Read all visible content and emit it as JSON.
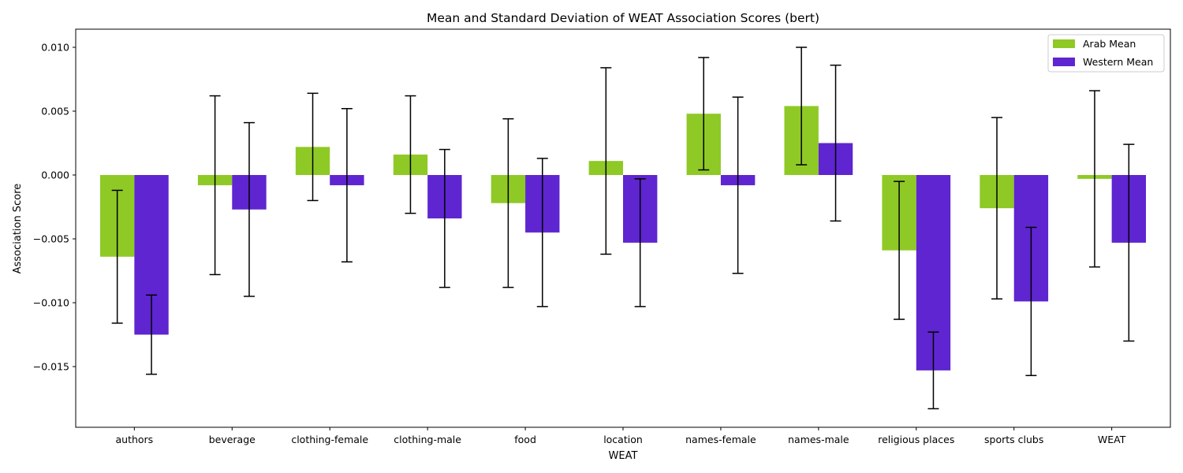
{
  "chart_data": {
    "type": "bar",
    "title": "Mean and Standard Deviation of WEAT Association Scores (bert)",
    "xlabel": "WEAT",
    "ylabel": "Association Score",
    "ylim": [
      -0.0195,
      0.0114
    ],
    "yticks": [
      -0.015,
      -0.01,
      -0.005,
      0.0,
      0.005,
      0.01
    ],
    "ytick_labels": [
      "−0.015",
      "−0.010",
      "−0.005",
      "0.000",
      "0.005",
      "0.010"
    ],
    "categories": [
      "authors",
      "beverage",
      "clothing-female",
      "clothing-male",
      "food",
      "location",
      "names-female",
      "names-male",
      "religious places",
      "sports clubs",
      "WEAT"
    ],
    "legend_position": "top-right",
    "grid": false,
    "series": [
      {
        "name": "Arab Mean",
        "color": "#8fc926",
        "values": [
          -0.0064,
          -0.0008,
          0.0022,
          0.0016,
          -0.0022,
          0.0011,
          0.0048,
          0.0054,
          -0.0059,
          -0.0026,
          -0.0003
        ],
        "std": [
          0.0052,
          0.007,
          0.0042,
          0.0046,
          0.0066,
          0.0073,
          0.0044,
          0.0046,
          0.0054,
          0.0071,
          0.0069
        ]
      },
      {
        "name": "Western Mean",
        "color": "#5e25d0",
        "values": [
          -0.0125,
          -0.0027,
          -0.0008,
          -0.0034,
          -0.0045,
          -0.0053,
          -0.0008,
          0.0025,
          -0.0153,
          -0.0099,
          -0.0053
        ],
        "std": [
          0.0031,
          0.0068,
          0.006,
          0.0054,
          0.0058,
          0.005,
          0.0069,
          0.0061,
          0.003,
          0.0058,
          0.0077
        ]
      }
    ]
  }
}
